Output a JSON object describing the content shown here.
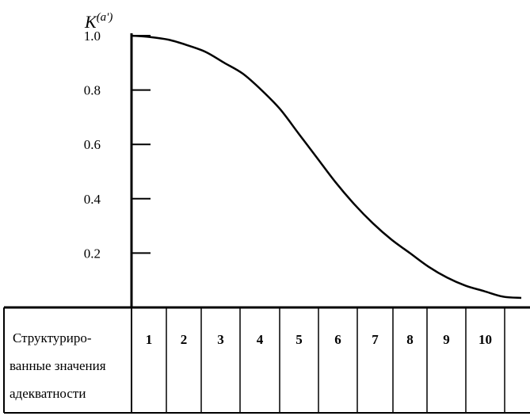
{
  "chart_data": {
    "type": "line",
    "ylabel": "K",
    "ylabel_superscript": "(a')",
    "ylim": [
      0,
      1.0
    ],
    "yticks": [
      "1.0",
      "0.8",
      "0.6",
      "0.4",
      "0.2"
    ],
    "ytick_values": [
      1.0,
      0.8,
      0.6,
      0.4,
      0.2
    ],
    "x": [
      0,
      0.5,
      1,
      1.5,
      2,
      2.5,
      3,
      3.5,
      4,
      4.5,
      5,
      5.5,
      6,
      6.5,
      7,
      7.5,
      8,
      8.5,
      9,
      9.5,
      10,
      10.5
    ],
    "y": [
      1.0,
      0.995,
      0.985,
      0.965,
      0.94,
      0.9,
      0.86,
      0.8,
      0.73,
      0.64,
      0.55,
      0.46,
      0.38,
      0.31,
      0.25,
      0.2,
      0.15,
      0.11,
      0.08,
      0.06,
      0.04,
      0.035
    ],
    "xlim": [
      0,
      10.5
    ],
    "categories": [
      "1",
      "2",
      "3",
      "4",
      "5",
      "6",
      "7",
      "8",
      "9",
      "10"
    ],
    "table_row_label": [
      "Структуриро-",
      "ванные значения",
      "адекватности"
    ],
    "grid": false,
    "line_color": "#000000"
  }
}
